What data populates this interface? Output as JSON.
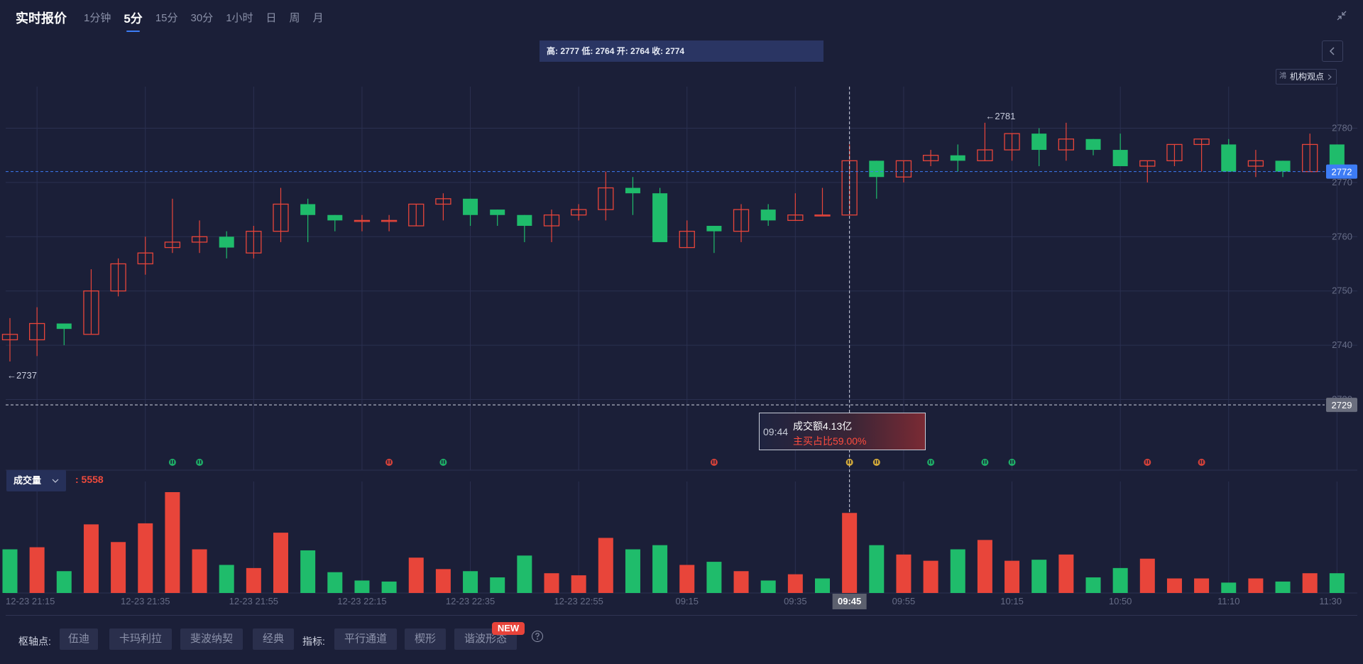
{
  "header": {
    "title": "实时报价",
    "tabs": [
      {
        "label": "1分钟",
        "active": false
      },
      {
        "label": "5分",
        "active": true
      },
      {
        "label": "15分",
        "active": false
      },
      {
        "label": "30分",
        "active": false
      },
      {
        "label": "1小时",
        "active": false
      },
      {
        "label": "日",
        "active": false
      },
      {
        "label": "周",
        "active": false
      },
      {
        "label": "月",
        "active": false
      }
    ]
  },
  "ohlc_info": "高: 2777 低: 2764 开: 2764 收: 2774",
  "inst_button": {
    "icon_text": "鴻",
    "label": "机构观点"
  },
  "volume_panel": {
    "label": "成交量",
    "value": ": 5558"
  },
  "tooltip": {
    "time": "09:44",
    "line1": "成交额4.13亿",
    "line2": "主买占比59.00%"
  },
  "bottom": {
    "pivot_label": "枢轴点:",
    "pivots": [
      "伍迪",
      "卡玛利拉",
      "斐波纳契",
      "经典"
    ],
    "indicator_label": "指标:",
    "indicators": [
      "平行通道",
      "楔形",
      "谐波形态"
    ],
    "new_badge": "NEW"
  },
  "colors": {
    "up": "#e8453a",
    "down": "#1fbc6b",
    "bg": "#1b1f38",
    "accent": "#3d7cf5"
  },
  "chart_data": {
    "type": "candlestick",
    "ylim": [
      2726,
      2784
    ],
    "yticks": [
      2730,
      2740,
      2750,
      2760,
      2770,
      2780
    ],
    "ytick_labels": [
      "2730",
      "2740",
      "2750",
      "2760",
      "2770",
      "2780"
    ],
    "current_price_label": "2772",
    "current_price": 2772,
    "crosshair_price_label": "2729",
    "crosshair_price": 2729,
    "max_label": "←2781",
    "min_label": "←2737",
    "xlabels": [
      {
        "label": "12-23 21:15",
        "index": 1
      },
      {
        "label": "12-23 21:35",
        "index": 5
      },
      {
        "label": "12-23 21:55",
        "index": 9
      },
      {
        "label": "12-23 22:15",
        "index": 13
      },
      {
        "label": "12-23 22:35",
        "index": 17
      },
      {
        "label": "12-23 22:55",
        "index": 21
      },
      {
        "label": "09:15",
        "index": 25
      },
      {
        "label": "09:35",
        "index": 29
      },
      {
        "label": "09:45",
        "index": 31,
        "highlight": true
      },
      {
        "label": "09:55",
        "index": 33
      },
      {
        "label": "10:15",
        "index": 37
      },
      {
        "label": "10:50",
        "index": 41
      },
      {
        "label": "11:10",
        "index": 45
      },
      {
        "label": "11:30",
        "index": 49
      }
    ],
    "crosshair_index": 31,
    "candles": [
      {
        "o": 2741,
        "h": 2745,
        "l": 2737,
        "c": 2742
      },
      {
        "o": 2741,
        "h": 2747,
        "l": 2738,
        "c": 2744
      },
      {
        "o": 2744,
        "h": 2744,
        "l": 2740,
        "c": 2743
      },
      {
        "o": 2742,
        "h": 2754,
        "l": 2742,
        "c": 2750
      },
      {
        "o": 2750,
        "h": 2756,
        "l": 2749,
        "c": 2755
      },
      {
        "o": 2755,
        "h": 2760,
        "l": 2753,
        "c": 2757
      },
      {
        "o": 2758,
        "h": 2767,
        "l": 2757,
        "c": 2759
      },
      {
        "o": 2759,
        "h": 2763,
        "l": 2757,
        "c": 2760
      },
      {
        "o": 2760,
        "h": 2761,
        "l": 2756,
        "c": 2758
      },
      {
        "o": 2757,
        "h": 2762,
        "l": 2756,
        "c": 2761
      },
      {
        "o": 2761,
        "h": 2769,
        "l": 2759,
        "c": 2766
      },
      {
        "o": 2766,
        "h": 2767,
        "l": 2759,
        "c": 2764
      },
      {
        "o": 2764,
        "h": 2764,
        "l": 2761,
        "c": 2763
      },
      {
        "o": 2763,
        "h": 2764,
        "l": 2761,
        "c": 2763
      },
      {
        "o": 2763,
        "h": 2764,
        "l": 2761,
        "c": 2763
      },
      {
        "o": 2762,
        "h": 2766,
        "l": 2762,
        "c": 2766
      },
      {
        "o": 2766,
        "h": 2768,
        "l": 2763,
        "c": 2767
      },
      {
        "o": 2767,
        "h": 2767,
        "l": 2762,
        "c": 2764
      },
      {
        "o": 2765,
        "h": 2765,
        "l": 2762,
        "c": 2764
      },
      {
        "o": 2764,
        "h": 2764,
        "l": 2759,
        "c": 2762
      },
      {
        "o": 2762,
        "h": 2765,
        "l": 2759,
        "c": 2764
      },
      {
        "o": 2764,
        "h": 2766,
        "l": 2763,
        "c": 2765
      },
      {
        "o": 2765,
        "h": 2772,
        "l": 2763,
        "c": 2769
      },
      {
        "o": 2769,
        "h": 2771,
        "l": 2764,
        "c": 2768
      },
      {
        "o": 2768,
        "h": 2769,
        "l": 2759,
        "c": 2759
      },
      {
        "o": 2758,
        "h": 2763,
        "l": 2758,
        "c": 2761
      },
      {
        "o": 2762,
        "h": 2762,
        "l": 2757,
        "c": 2761
      },
      {
        "o": 2761,
        "h": 2766,
        "l": 2759,
        "c": 2765
      },
      {
        "o": 2765,
        "h": 2766,
        "l": 2762,
        "c": 2763
      },
      {
        "o": 2763,
        "h": 2768,
        "l": 2763,
        "c": 2764
      },
      {
        "o": 2764,
        "h": 2769,
        "l": 2764,
        "c": 2764
      },
      {
        "o": 2764,
        "h": 2777,
        "l": 2764,
        "c": 2774
      },
      {
        "o": 2774,
        "h": 2774,
        "l": 2767,
        "c": 2771
      },
      {
        "o": 2771,
        "h": 2774,
        "l": 2770,
        "c": 2774
      },
      {
        "o": 2774,
        "h": 2776,
        "l": 2773,
        "c": 2775
      },
      {
        "o": 2775,
        "h": 2777,
        "l": 2772,
        "c": 2774
      },
      {
        "o": 2774,
        "h": 2781,
        "l": 2774,
        "c": 2776
      },
      {
        "o": 2776,
        "h": 2779,
        "l": 2774,
        "c": 2779
      },
      {
        "o": 2779,
        "h": 2780,
        "l": 2773,
        "c": 2776
      },
      {
        "o": 2776,
        "h": 2781,
        "l": 2774,
        "c": 2778
      },
      {
        "o": 2778,
        "h": 2778,
        "l": 2775,
        "c": 2776
      },
      {
        "o": 2776,
        "h": 2779,
        "l": 2773,
        "c": 2773
      },
      {
        "o": 2773,
        "h": 2774,
        "l": 2770,
        "c": 2774
      },
      {
        "o": 2774,
        "h": 2777,
        "l": 2773,
        "c": 2777
      },
      {
        "o": 2777,
        "h": 2778,
        "l": 2772,
        "c": 2778
      },
      {
        "o": 2777,
        "h": 2778,
        "l": 2772,
        "c": 2772
      },
      {
        "o": 2773,
        "h": 2776,
        "l": 2771,
        "c": 2774
      },
      {
        "o": 2774,
        "h": 2774,
        "l": 2771,
        "c": 2772
      },
      {
        "o": 2772,
        "h": 2779,
        "l": 2772,
        "c": 2777
      },
      {
        "o": 2777,
        "h": 2777,
        "l": 2772,
        "c": 2772
      }
    ],
    "volumes": [
      {
        "v": 4200,
        "up": false
      },
      {
        "v": 4400,
        "up": true
      },
      {
        "v": 2100,
        "up": false
      },
      {
        "v": 6600,
        "up": true
      },
      {
        "v": 4900,
        "up": true
      },
      {
        "v": 6700,
        "up": true
      },
      {
        "v": 9700,
        "up": true
      },
      {
        "v": 4200,
        "up": true
      },
      {
        "v": 2700,
        "up": false
      },
      {
        "v": 2400,
        "up": true
      },
      {
        "v": 5800,
        "up": true
      },
      {
        "v": 4100,
        "up": false
      },
      {
        "v": 2000,
        "up": false
      },
      {
        "v": 1200,
        "up": false
      },
      {
        "v": 1100,
        "up": false
      },
      {
        "v": 3400,
        "up": true
      },
      {
        "v": 2300,
        "up": true
      },
      {
        "v": 2100,
        "up": false
      },
      {
        "v": 1500,
        "up": false
      },
      {
        "v": 3600,
        "up": false
      },
      {
        "v": 1900,
        "up": true
      },
      {
        "v": 1700,
        "up": true
      },
      {
        "v": 5300,
        "up": true
      },
      {
        "v": 4200,
        "up": false
      },
      {
        "v": 4600,
        "up": false
      },
      {
        "v": 2700,
        "up": true
      },
      {
        "v": 3000,
        "up": false
      },
      {
        "v": 2100,
        "up": true
      },
      {
        "v": 1200,
        "up": false
      },
      {
        "v": 1800,
        "up": true
      },
      {
        "v": 1400,
        "up": false
      },
      {
        "v": 7700,
        "up": true
      },
      {
        "v": 4600,
        "up": false
      },
      {
        "v": 3700,
        "up": true
      },
      {
        "v": 3100,
        "up": true
      },
      {
        "v": 4200,
        "up": false
      },
      {
        "v": 5100,
        "up": true
      },
      {
        "v": 3100,
        "up": true
      },
      {
        "v": 3200,
        "up": false
      },
      {
        "v": 3700,
        "up": true
      },
      {
        "v": 1500,
        "up": false
      },
      {
        "v": 2400,
        "up": false
      },
      {
        "v": 3300,
        "up": true
      },
      {
        "v": 1400,
        "up": true
      },
      {
        "v": 1400,
        "up": true
      },
      {
        "v": 1000,
        "up": false
      },
      {
        "v": 1400,
        "up": true
      },
      {
        "v": 1100,
        "up": false
      },
      {
        "v": 1900,
        "up": true
      },
      {
        "v": 1900,
        "up": false
      }
    ],
    "event_markers": [
      {
        "index": 6,
        "color": "#1fbc6b"
      },
      {
        "index": 7,
        "color": "#1fbc6b"
      },
      {
        "index": 14,
        "color": "#e8453a"
      },
      {
        "index": 16,
        "color": "#1fbc6b"
      },
      {
        "index": 26,
        "color": "#e8453a"
      },
      {
        "index": 31,
        "color": "#e8b93a"
      },
      {
        "index": 32,
        "color": "#e8b93a"
      },
      {
        "index": 34,
        "color": "#1fbc6b"
      },
      {
        "index": 36,
        "color": "#1fbc6b"
      },
      {
        "index": 37,
        "color": "#1fbc6b"
      },
      {
        "index": 42,
        "color": "#e8453a"
      },
      {
        "index": 44,
        "color": "#e8453a"
      }
    ]
  }
}
